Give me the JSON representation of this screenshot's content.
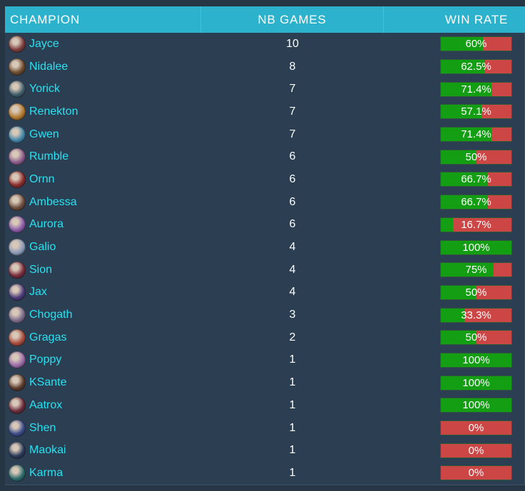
{
  "table": {
    "headers": {
      "champion": "CHAMPION",
      "games": "NB GAMES",
      "winrate": "WIN RATE"
    },
    "rows": [
      {
        "name": "Jayce",
        "games": "10",
        "winrate": 60,
        "winrate_label": "60%",
        "avatar_color": "#7a3b3b"
      },
      {
        "name": "Nidalee",
        "games": "8",
        "winrate": 62.5,
        "winrate_label": "62.5%",
        "avatar_color": "#6b4a2b"
      },
      {
        "name": "Yorick",
        "games": "7",
        "winrate": 71.4,
        "winrate_label": "71.4%",
        "avatar_color": "#3f5d6b"
      },
      {
        "name": "Renekton",
        "games": "7",
        "winrate": 57.1,
        "winrate_label": "57.1%",
        "avatar_color": "#b0782a"
      },
      {
        "name": "Gwen",
        "games": "7",
        "winrate": 71.4,
        "winrate_label": "71.4%",
        "avatar_color": "#3f86a8"
      },
      {
        "name": "Rumble",
        "games": "6",
        "winrate": 50,
        "winrate_label": "50%",
        "avatar_color": "#8a5a8a"
      },
      {
        "name": "Ornn",
        "games": "6",
        "winrate": 66.7,
        "winrate_label": "66.7%",
        "avatar_color": "#8a2a2a"
      },
      {
        "name": "Ambessa",
        "games": "6",
        "winrate": 66.7,
        "winrate_label": "66.7%",
        "avatar_color": "#6a4a3a"
      },
      {
        "name": "Aurora",
        "games": "6",
        "winrate": 16.7,
        "winrate_label": "16.7%",
        "avatar_color": "#8a5aa8"
      },
      {
        "name": "Galio",
        "games": "4",
        "winrate": 100,
        "winrate_label": "100%",
        "avatar_color": "#8a9ab8"
      },
      {
        "name": "Sion",
        "games": "4",
        "winrate": 75,
        "winrate_label": "75%",
        "avatar_color": "#7a2a3a"
      },
      {
        "name": "Jax",
        "games": "4",
        "winrate": 50,
        "winrate_label": "50%",
        "avatar_color": "#4a3a7a"
      },
      {
        "name": "Chogath",
        "games": "3",
        "winrate": 33.3,
        "winrate_label": "33.3%",
        "avatar_color": "#7a6a8a"
      },
      {
        "name": "Gragas",
        "games": "2",
        "winrate": 50,
        "winrate_label": "50%",
        "avatar_color": "#a84a3a"
      },
      {
        "name": "Poppy",
        "games": "1",
        "winrate": 100,
        "winrate_label": "100%",
        "avatar_color": "#9a6aa8"
      },
      {
        "name": "KSante",
        "games": "1",
        "winrate": 100,
        "winrate_label": "100%",
        "avatar_color": "#5a3a2a"
      },
      {
        "name": "Aatrox",
        "games": "1",
        "winrate": 100,
        "winrate_label": "100%",
        "avatar_color": "#6a2a3a"
      },
      {
        "name": "Shen",
        "games": "1",
        "winrate": 0,
        "winrate_label": "0%",
        "avatar_color": "#3a4a8a"
      },
      {
        "name": "Maokai",
        "games": "1",
        "winrate": 0,
        "winrate_label": "0%",
        "avatar_color": "#2a3a5a"
      },
      {
        "name": "Karma",
        "games": "1",
        "winrate": 0,
        "winrate_label": "0%",
        "avatar_color": "#2a6a6a"
      }
    ]
  },
  "colors": {
    "header_bg": "#2cb2cc",
    "row_bg": "#2b3e52",
    "name_text": "#27e3f2",
    "win_green": "#139e13",
    "loss_red": "#cc4646"
  }
}
